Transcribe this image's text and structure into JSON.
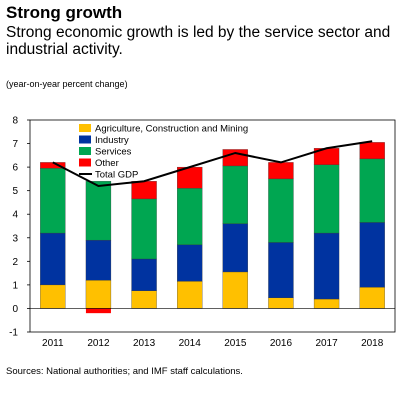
{
  "header": {
    "title": "Strong growth",
    "subtitle": "Strong economic growth is led by the service sector and industrial activity.",
    "unit_note": "(year-on-year percent change)"
  },
  "footer": {
    "source": "Sources: National authorities; and IMF staff calculations."
  },
  "chart_data": {
    "type": "bar",
    "stacked": true,
    "categories": [
      "2011",
      "2012",
      "2013",
      "2014",
      "2015",
      "2016",
      "2017",
      "2018"
    ],
    "series": [
      {
        "name": "Agriculture, Construction and Mining",
        "color": "#FFC000",
        "values": [
          1.0,
          1.2,
          0.75,
          1.15,
          1.55,
          0.45,
          0.4,
          0.9
        ]
      },
      {
        "name": "Industry",
        "color": "#0033A0",
        "values": [
          2.2,
          1.7,
          1.35,
          1.55,
          2.05,
          2.35,
          2.8,
          2.75
        ]
      },
      {
        "name": "Services",
        "color": "#00A651",
        "values": [
          2.75,
          2.5,
          2.55,
          2.4,
          2.45,
          2.7,
          2.9,
          2.7
        ]
      },
      {
        "name": "Other",
        "color": "#FF0000",
        "values": [
          0.25,
          0.0,
          0.75,
          0.9,
          0.7,
          0.7,
          0.7,
          0.7
        ]
      }
    ],
    "negative": {
      "series": "Other",
      "values": [
        0,
        -0.2,
        0,
        0,
        0,
        0,
        0,
        0
      ]
    },
    "line": {
      "name": "Total GDP",
      "color": "#000000",
      "values": [
        6.2,
        5.2,
        5.4,
        6.0,
        6.6,
        6.2,
        6.8,
        7.1
      ]
    },
    "ylim": [
      -1,
      8
    ],
    "yticks": [
      "-1",
      "0",
      "1",
      "2",
      "3",
      "4",
      "5",
      "6",
      "7",
      "8"
    ],
    "legend_position": "top-left"
  }
}
